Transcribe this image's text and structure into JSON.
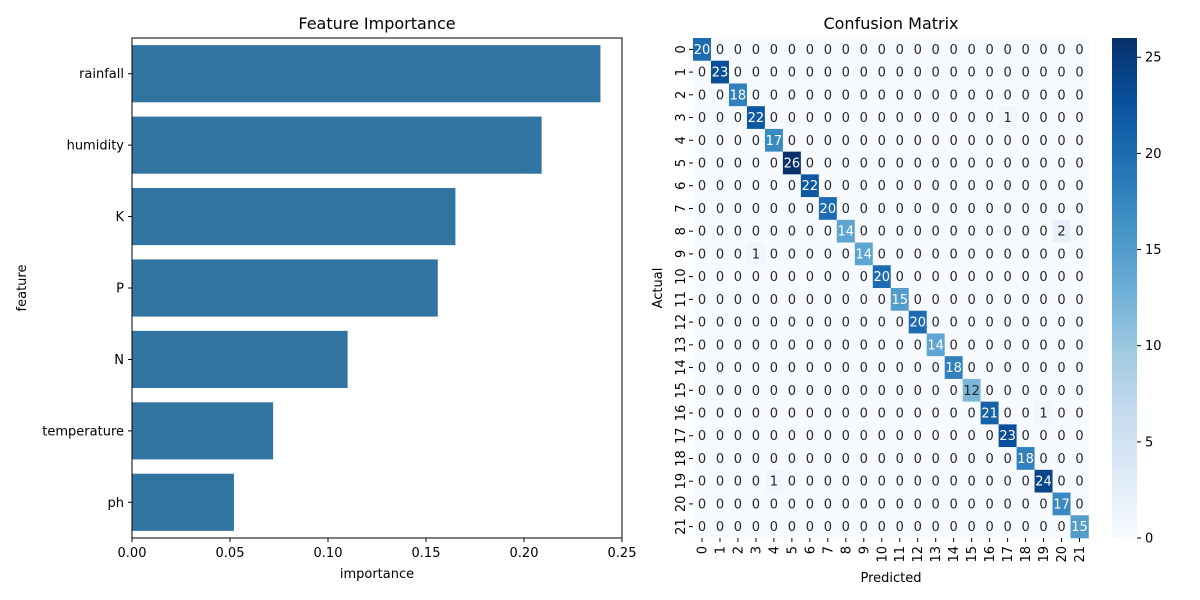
{
  "chart_data": [
    {
      "type": "bar",
      "orientation": "horizontal",
      "title": "Feature Importance",
      "xlabel": "importance",
      "ylabel": "feature",
      "categories": [
        "rainfall",
        "humidity",
        "K",
        "P",
        "N",
        "temperature",
        "ph"
      ],
      "values": [
        0.239,
        0.209,
        0.165,
        0.156,
        0.11,
        0.072,
        0.052
      ],
      "xlim": [
        0,
        0.25
      ],
      "xticks": [
        "0.00",
        "0.05",
        "0.10",
        "0.15",
        "0.20",
        "0.25"
      ],
      "bar_color": "#3274a1",
      "grid": false
    },
    {
      "type": "heatmap",
      "title": "Confusion Matrix",
      "xlabel": "Predicted",
      "ylabel": "Actual",
      "labels": [
        "0",
        "1",
        "2",
        "3",
        "4",
        "5",
        "6",
        "7",
        "8",
        "9",
        "10",
        "11",
        "12",
        "13",
        "14",
        "15",
        "16",
        "17",
        "18",
        "19",
        "20",
        "21"
      ],
      "colormap": "Blues",
      "vmin": 0,
      "vmax": 26,
      "colorbar_ticks": [
        "0",
        "5",
        "10",
        "15",
        "20",
        "25"
      ],
      "annotated": true,
      "diagonal": [
        20,
        23,
        18,
        22,
        17,
        26,
        22,
        20,
        14,
        14,
        20,
        15,
        20,
        14,
        18,
        12,
        21,
        23,
        18,
        24,
        17,
        15
      ],
      "off_diagonal": [
        {
          "actual": 3,
          "predicted": 17,
          "value": 1
        },
        {
          "actual": 8,
          "predicted": 20,
          "value": 2
        },
        {
          "actual": 9,
          "predicted": 3,
          "value": 1
        },
        {
          "actual": 16,
          "predicted": 19,
          "value": 1
        },
        {
          "actual": 19,
          "predicted": 4,
          "value": 1
        }
      ]
    }
  ]
}
